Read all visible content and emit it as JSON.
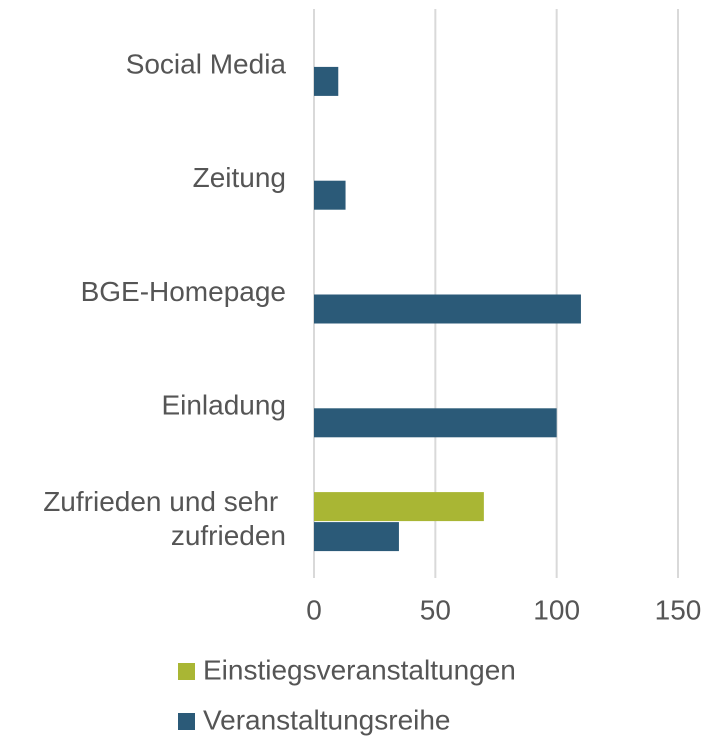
{
  "chart_data": {
    "type": "bar",
    "orientation": "horizontal",
    "categories": [
      "Social Media",
      "Zeitung",
      "BGE-Homepage",
      "Einladung",
      "Zufrieden und sehr zufrieden"
    ],
    "series": [
      {
        "name": "Einstiegsveranstaltungen",
        "color": "#a9b634",
        "values": [
          null,
          null,
          null,
          null,
          70
        ]
      },
      {
        "name": "Veranstaltungsreihe",
        "color": "#2b5a78",
        "values": [
          10,
          13,
          110,
          100,
          35
        ]
      }
    ],
    "xlim": [
      0,
      150
    ],
    "xticks": [
      0,
      50,
      100,
      150
    ],
    "grid": true,
    "legend": "bottom"
  }
}
